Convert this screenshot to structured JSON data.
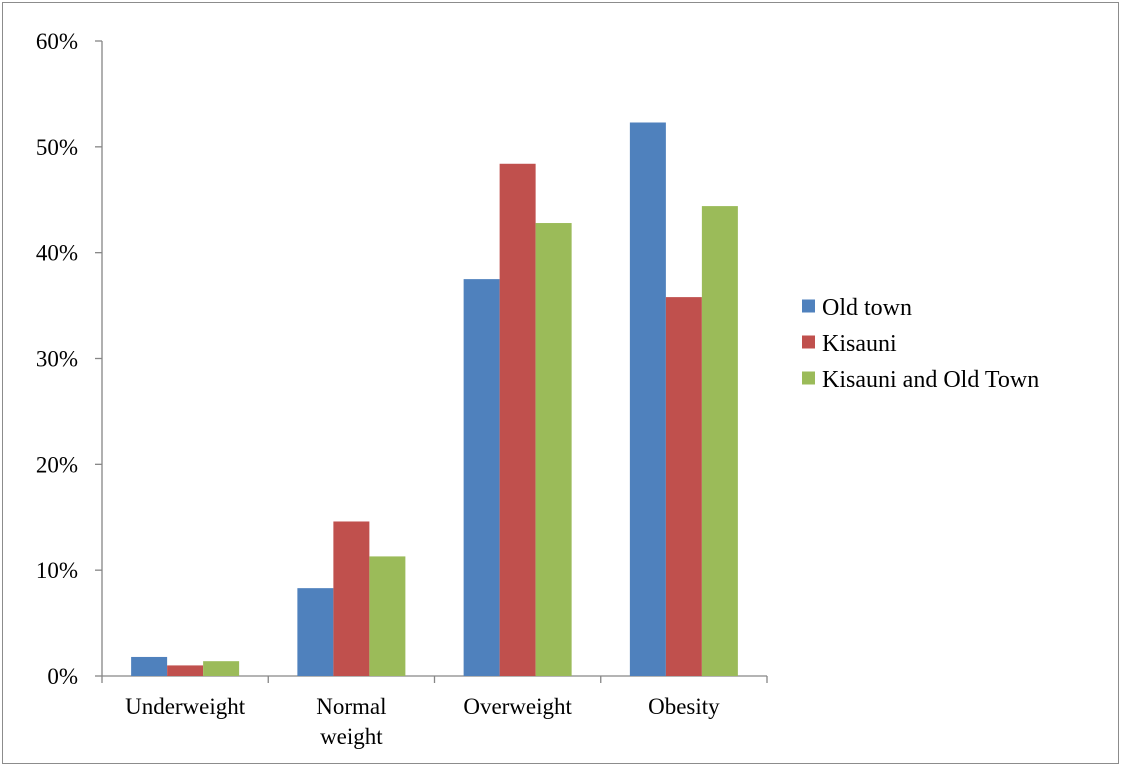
{
  "chart_data": {
    "type": "bar",
    "title": "",
    "xlabel": "",
    "ylabel": "",
    "categories": [
      [
        "Underweight"
      ],
      [
        "Normal",
        "weight"
      ],
      [
        "Overweight"
      ],
      [
        "Obesity"
      ]
    ],
    "series": [
      {
        "name": "Old town",
        "color": "#4f81bd",
        "values": [
          1.8,
          8.3,
          37.5,
          52.3
        ]
      },
      {
        "name": "Kisauni",
        "color": "#c0504d",
        "values": [
          1.0,
          14.6,
          48.4,
          35.8
        ]
      },
      {
        "name": "Kisauni and Old Town",
        "color": "#9bbb59",
        "values": [
          1.4,
          11.3,
          42.8,
          44.4
        ]
      }
    ],
    "ylim": [
      0,
      60
    ],
    "yticks": [
      0,
      10,
      20,
      30,
      40,
      50,
      60
    ],
    "ytick_labels": [
      "0%",
      "10%",
      "20%",
      "30%",
      "40%",
      "50%",
      "60%"
    ],
    "grid": false,
    "legend_position": "right"
  }
}
